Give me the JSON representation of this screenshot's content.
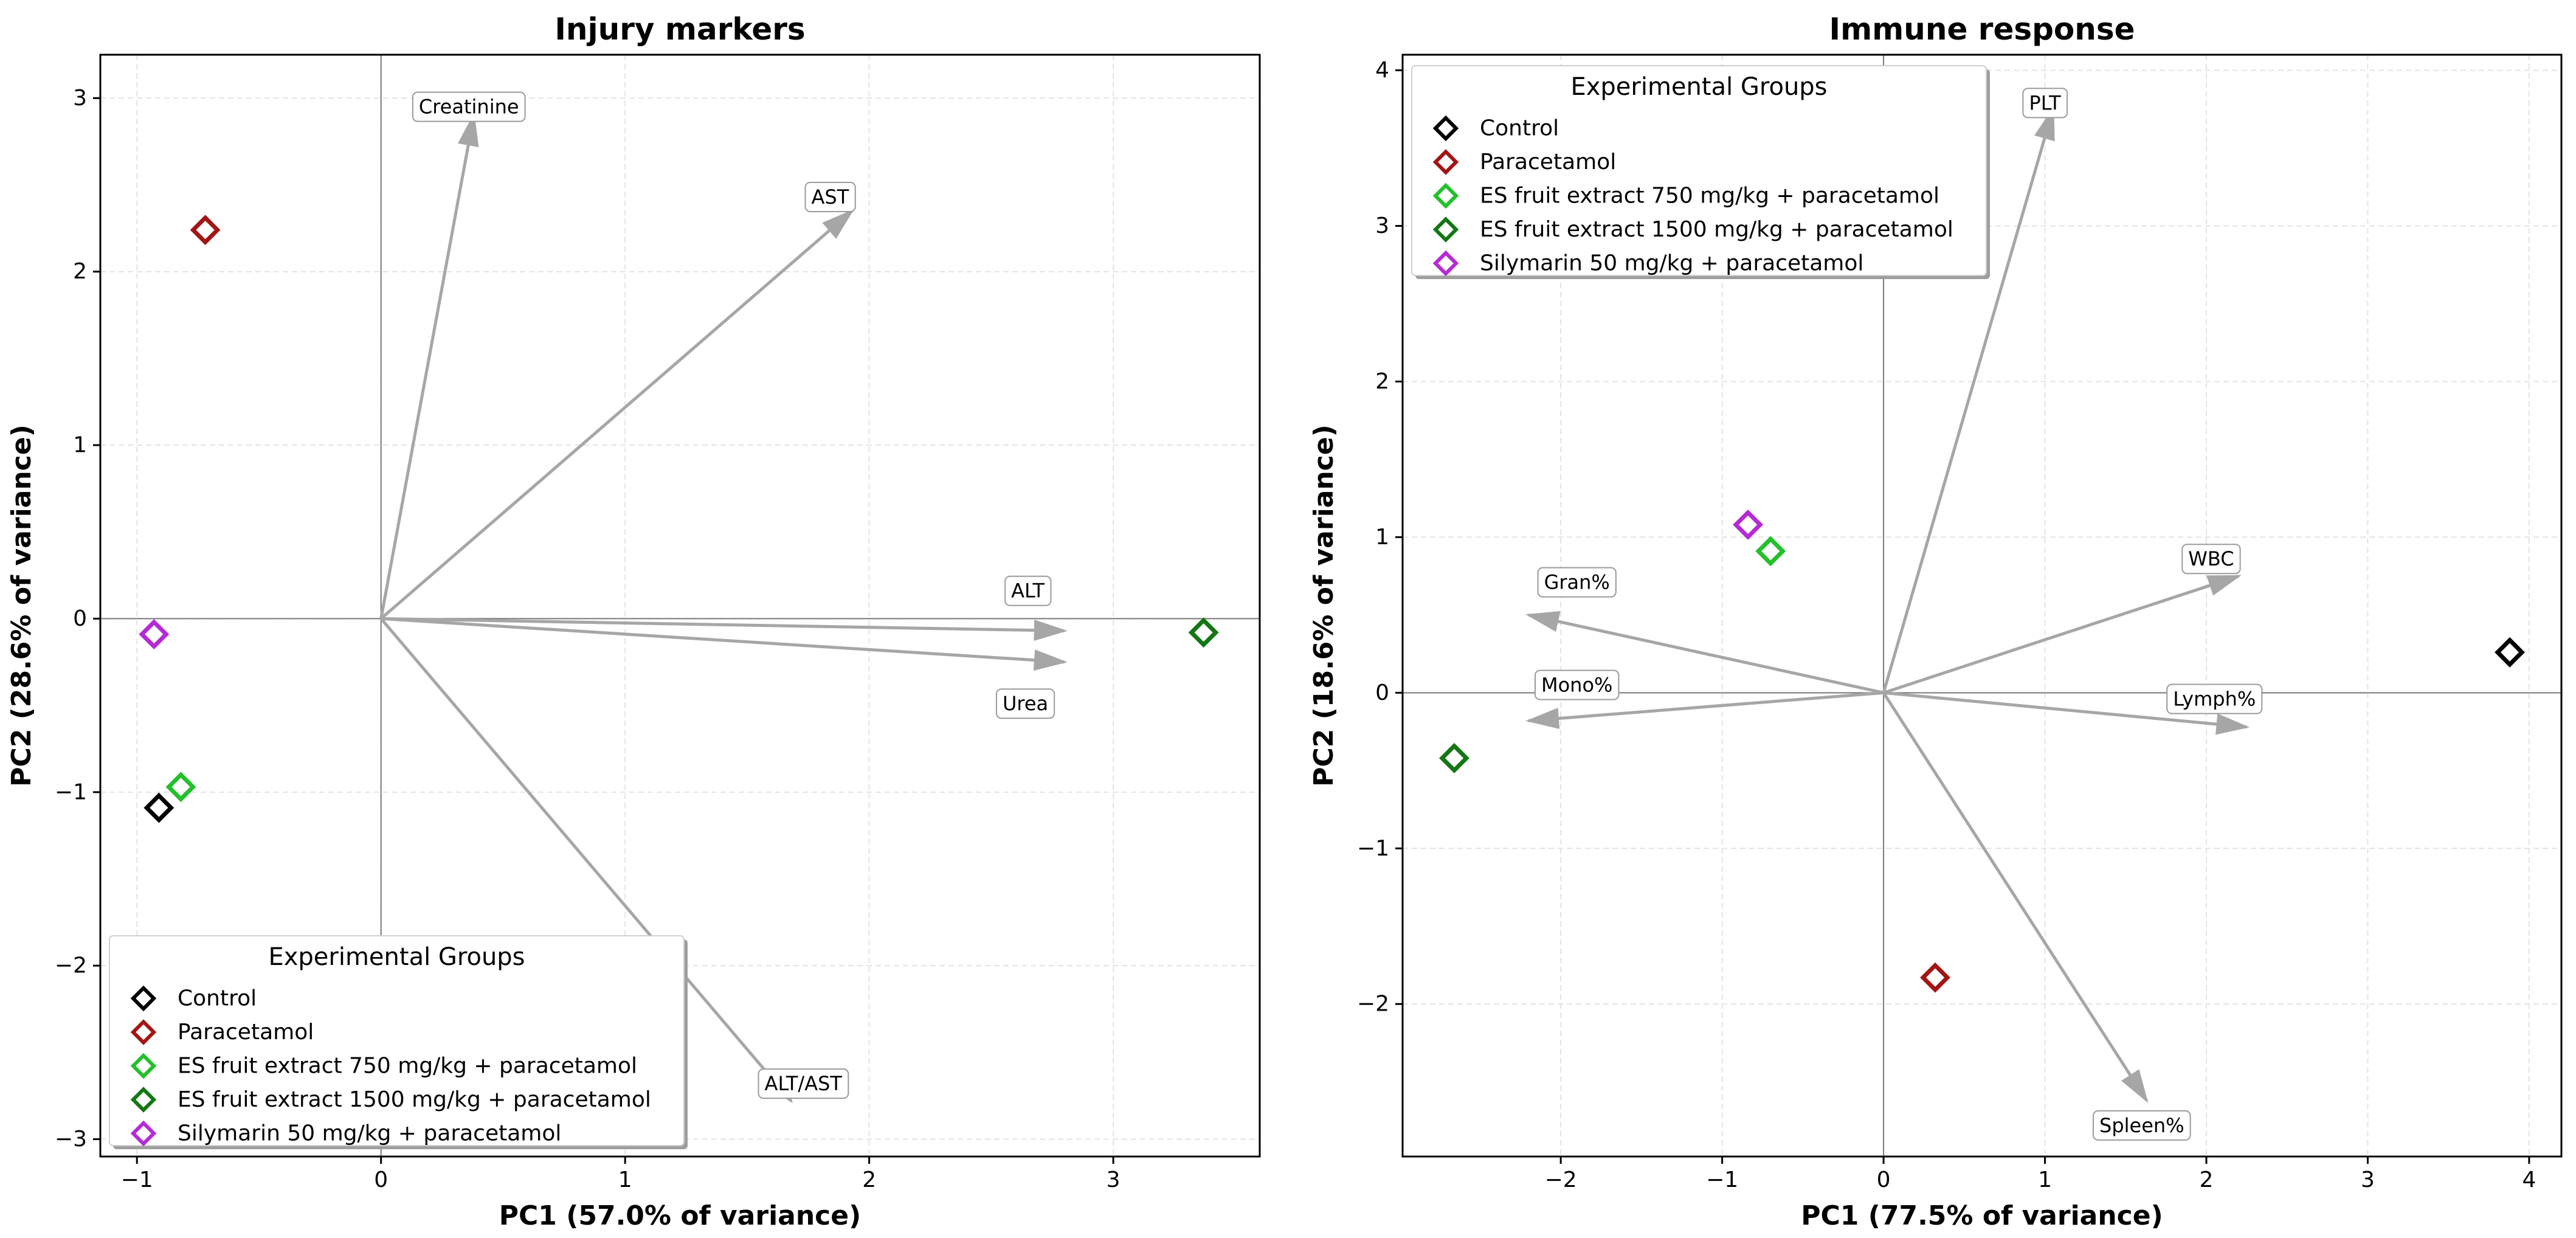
{
  "chart_data": [
    {
      "type": "scatter",
      "subtype": "pca-biplot",
      "title": "Injury markers",
      "xlabel": "PC1 (57.0% of variance)",
      "ylabel": "PC2 (28.6% of variance)",
      "xlim": [
        -1.15,
        3.6
      ],
      "ylim": [
        -3.1,
        3.25
      ],
      "xticks": [
        -1,
        0,
        1,
        2,
        3
      ],
      "yticks": [
        -3,
        -2,
        -1,
        0,
        1,
        2,
        3
      ],
      "grid": true,
      "legend_position": "bottom-left",
      "legend_title": "Experimental Groups",
      "groups": [
        {
          "name": "Control",
          "color": "#000000",
          "x": -0.91,
          "y": -1.09
        },
        {
          "name": "Paracetamol",
          "color": "#a31515",
          "x": -0.72,
          "y": 2.24
        },
        {
          "name": "ES fruit extract 750 mg/kg + paracetamol",
          "color": "#22c02a",
          "x": -0.82,
          "y": -0.97
        },
        {
          "name": "ES fruit extract 1500 mg/kg + paracetamol",
          "color": "#137713",
          "x": 3.37,
          "y": -0.08
        },
        {
          "name": "Silymarin 50 mg/kg + paracetamol",
          "color": "#b52ad6",
          "x": -0.93,
          "y": -0.09
        }
      ],
      "loadings": [
        {
          "name": "Creatinine",
          "x": 0.38,
          "y": 2.9,
          "label_x": 0.36,
          "label_y": 2.95
        },
        {
          "name": "AST",
          "x": 1.93,
          "y": 2.35,
          "label_x": 1.84,
          "label_y": 2.43
        },
        {
          "name": "ALT",
          "x": 2.8,
          "y": -0.07,
          "label_x": 2.65,
          "label_y": 0.16
        },
        {
          "name": "Urea",
          "x": 2.8,
          "y": -0.25,
          "label_x": 2.64,
          "label_y": -0.49
        },
        {
          "name": "ALT/AST",
          "x": 1.68,
          "y": -2.78,
          "label_x": 1.73,
          "label_y": -2.68
        }
      ]
    },
    {
      "type": "scatter",
      "subtype": "pca-biplot",
      "title": "Immune response",
      "xlabel": "PC1 (77.5% of variance)",
      "ylabel": "PC2 (18.6% of variance)",
      "xlim": [
        -2.98,
        4.2
      ],
      "ylim": [
        -2.98,
        4.1
      ],
      "xticks": [
        -2,
        -1,
        0,
        1,
        2,
        3,
        4
      ],
      "yticks": [
        -2,
        -1,
        0,
        1,
        2,
        3,
        4
      ],
      "grid": true,
      "legend_position": "top-left",
      "legend_title": "Experimental Groups",
      "groups": [
        {
          "name": "Control",
          "color": "#000000",
          "x": 3.88,
          "y": 0.26
        },
        {
          "name": "Paracetamol",
          "color": "#a31515",
          "x": 0.32,
          "y": -1.83
        },
        {
          "name": "ES fruit extract 750 mg/kg + paracetamol",
          "color": "#22c02a",
          "x": -0.7,
          "y": 0.91
        },
        {
          "name": "ES fruit extract 1500 mg/kg + paracetamol",
          "color": "#137713",
          "x": -2.66,
          "y": -0.42
        },
        {
          "name": "Silymarin 50 mg/kg + paracetamol",
          "color": "#b52ad6",
          "x": -0.84,
          "y": 1.08
        }
      ],
      "loadings": [
        {
          "name": "PLT",
          "x": 1.05,
          "y": 3.75,
          "label_x": 1.0,
          "label_y": 3.79
        },
        {
          "name": "WBC",
          "x": 2.2,
          "y": 0.75,
          "label_x": 2.03,
          "label_y": 0.86
        },
        {
          "name": "Lymph%",
          "x": 2.25,
          "y": -0.22,
          "label_x": 2.05,
          "label_y": -0.04
        },
        {
          "name": "Gran%",
          "x": -2.2,
          "y": 0.5,
          "label_x": -1.9,
          "label_y": 0.71
        },
        {
          "name": "Mono%",
          "x": -2.2,
          "y": -0.18,
          "label_x": -1.9,
          "label_y": 0.05
        },
        {
          "name": "Spleen%",
          "x": 1.63,
          "y": -2.62,
          "label_x": 1.6,
          "label_y": -2.78
        }
      ]
    }
  ]
}
